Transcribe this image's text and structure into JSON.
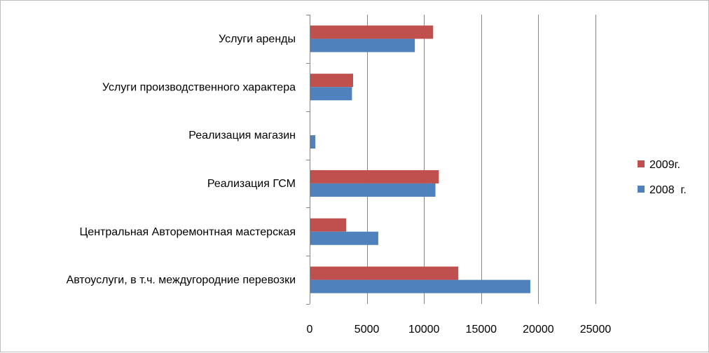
{
  "chart_data": {
    "type": "bar",
    "orientation": "horizontal",
    "title": "",
    "xlabel": "",
    "ylabel": "",
    "xlim": [
      0,
      25000
    ],
    "xticks": [
      0,
      5000,
      10000,
      15000,
      20000,
      25000
    ],
    "grid": "vertical",
    "legend_position": "right",
    "categories": [
      "Услуги аренды",
      "Услуги производственного характера",
      "Реализация магазин",
      "Реализация ГСМ",
      "Центральная Авторемонтная мастерская",
      "Автоуслуги, в т.ч. междугородние перевозки"
    ],
    "series": [
      {
        "name": "2009г.",
        "color": "#c0504d",
        "values": [
          10800,
          3800,
          0,
          11300,
          3200,
          13000
        ]
      },
      {
        "name": "2008  г.",
        "color": "#4f81bd",
        "values": [
          9200,
          3700,
          500,
          11000,
          6000,
          19300
        ]
      }
    ]
  }
}
